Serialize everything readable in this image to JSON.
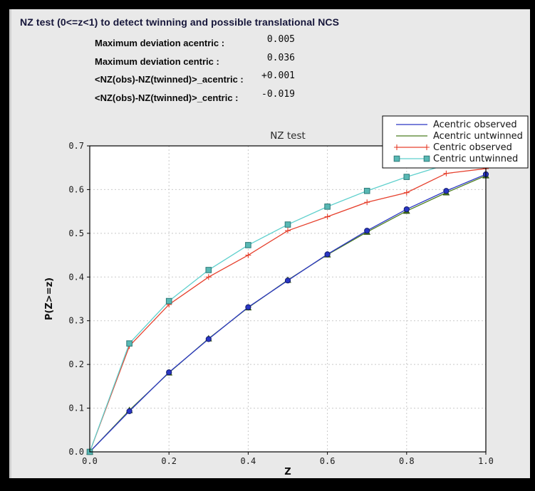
{
  "header": {
    "title": "NZ test (0<=z<1) to detect twinning and possible translational NCS"
  },
  "stats": {
    "rows": [
      {
        "label": "Maximum deviation acentric :",
        "value": "0.005"
      },
      {
        "label": "Maximum deviation centric :",
        "value": "0.036"
      },
      {
        "label": "<NZ(obs)-NZ(twinned)>_acentric :",
        "value": "+0.001"
      },
      {
        "label": "<NZ(obs)-NZ(twinned)>_centric :",
        "value": "-0.019"
      }
    ]
  },
  "chart_data": {
    "type": "line",
    "title": "NZ test",
    "xlabel": "Z",
    "ylabel": "P(Z>=z)",
    "xlim": [
      0.0,
      1.0
    ],
    "ylim": [
      0.0,
      0.7
    ],
    "x_ticks": [
      0.0,
      0.2,
      0.4,
      0.6,
      0.8,
      1.0
    ],
    "y_ticks": [
      0.0,
      0.1,
      0.2,
      0.3,
      0.4,
      0.5,
      0.6,
      0.7
    ],
    "grid": true,
    "legend_position": "top-right",
    "x": [
      0.0,
      0.1,
      0.2,
      0.3,
      0.4,
      0.5,
      0.6,
      0.7,
      0.8,
      0.9,
      1.0
    ],
    "series": [
      {
        "name": "Acentric observed",
        "color": "#2a36c4",
        "marker": "circle",
        "legend_marker": false,
        "marker_fill": "#2a36c4",
        "marker_edge": "#111c6e",
        "values": [
          0.0,
          0.093,
          0.182,
          0.258,
          0.331,
          0.392,
          0.452,
          0.506,
          0.555,
          0.597,
          0.635
        ]
      },
      {
        "name": "Acentric untwinned",
        "color": "#4c7d21",
        "marker": "triangle",
        "legend_marker": false,
        "marker_fill": "#41701a",
        "marker_edge": "#2c4d10",
        "values": [
          0.0,
          0.095,
          0.181,
          0.259,
          0.33,
          0.393,
          0.451,
          0.503,
          0.551,
          0.593,
          0.632
        ]
      },
      {
        "name": "Centric observed",
        "color": "#e6402d",
        "marker": "plus",
        "legend_marker": true,
        "marker_fill": "#e6402d",
        "marker_edge": "#e6402d",
        "values": [
          0.0,
          0.242,
          0.337,
          0.4,
          0.45,
          0.506,
          0.538,
          0.571,
          0.593,
          0.637,
          0.648
        ]
      },
      {
        "name": "Centric untwinned",
        "color": "#5fd0cd",
        "marker": "square",
        "legend_marker": true,
        "marker_fill": "#58b8b4",
        "marker_edge": "#2e7a78",
        "values": [
          0.0,
          0.248,
          0.345,
          0.416,
          0.473,
          0.52,
          0.561,
          0.597,
          0.629,
          0.657,
          0.683
        ]
      }
    ],
    "colors": {
      "plot_background": "#ffffff",
      "panel_background": "#e9e9e9",
      "frame": "#000000",
      "grid": "#c9c9c9",
      "legend_background": "#ffffff",
      "legend_border": "#000000"
    }
  }
}
